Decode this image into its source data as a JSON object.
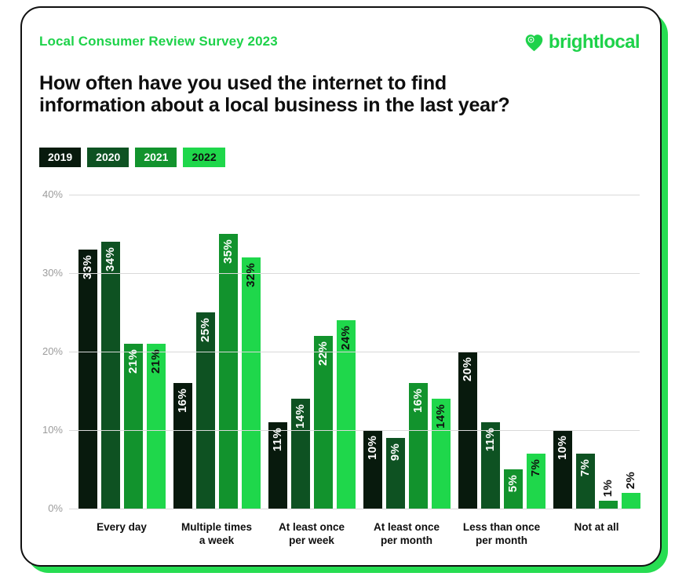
{
  "page": {
    "eyebrow": "Local Consumer Review Survey 2023",
    "brand_name": "brightlocal",
    "title_line1": "How often have you used the internet to find",
    "title_line2": "information about a local business in the last year?"
  },
  "colors": {
    "brand_green": "#1ed24a",
    "accent_border": "#27dd52",
    "grid_line": "#d9d9d9",
    "axis_text": "#9c9c9c",
    "outside_label": "#111111"
  },
  "chart_data": {
    "type": "bar",
    "title": "How often have you used the internet to find information about a local business in the last year?",
    "categories": [
      "Every day",
      "Multiple times\na week",
      "At least once\nper week",
      "At least once\nper month",
      "Less than once\nper month",
      "Not at all"
    ],
    "series": [
      {
        "name": "2019",
        "color": "#081a0d",
        "label_color": "#ffffff",
        "values": [
          33,
          16,
          11,
          10,
          20,
          10
        ]
      },
      {
        "name": "2020",
        "color": "#0e5222",
        "label_color": "#ffffff",
        "values": [
          34,
          25,
          14,
          9,
          11,
          7
        ]
      },
      {
        "name": "2021",
        "color": "#12932d",
        "label_color": "#ffffff",
        "values": [
          21,
          35,
          22,
          16,
          5,
          1
        ]
      },
      {
        "name": "2022",
        "color": "#1fd74b",
        "label_color": "#101010",
        "values": [
          21,
          32,
          24,
          14,
          7,
          2
        ]
      }
    ],
    "value_suffix": "%",
    "ylim": [
      0,
      40
    ],
    "ytick_step": 10,
    "yticks": [
      "40%",
      "30%",
      "20%",
      "10%",
      "0%"
    ],
    "grid": true,
    "legend_position": "top-left"
  }
}
